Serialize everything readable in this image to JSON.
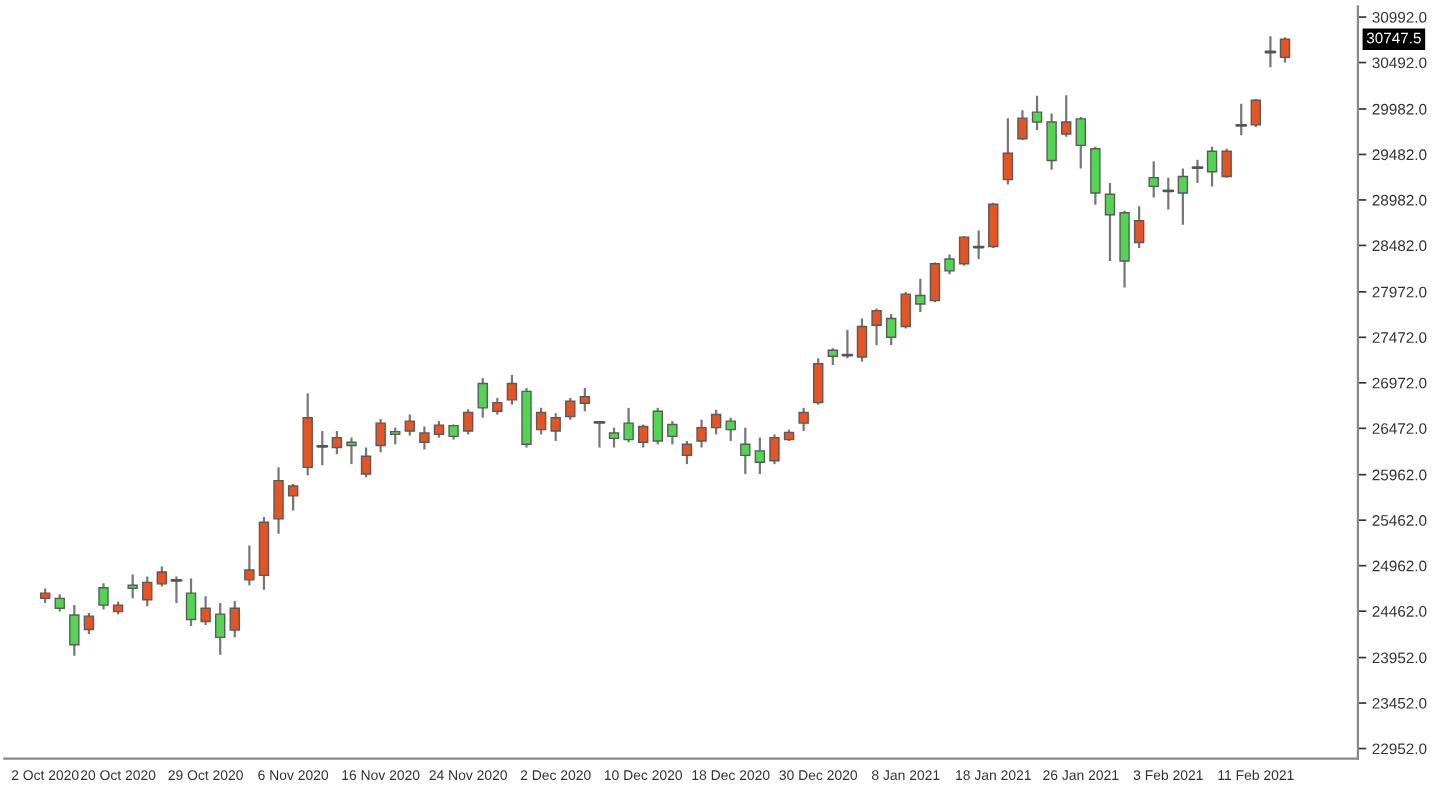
{
  "chart_data": {
    "type": "candlestick",
    "categories": [
      "2 Oct 2020",
      null,
      null,
      null,
      null,
      "20 Oct 2020",
      null,
      null,
      null,
      null,
      null,
      "29 Oct 2020",
      null,
      null,
      null,
      null,
      null,
      "6 Nov 2020",
      null,
      null,
      null,
      null,
      null,
      "16 Nov 2020",
      null,
      null,
      null,
      null,
      null,
      "24 Nov 2020",
      null,
      null,
      null,
      null,
      null,
      "2 Dec 2020",
      null,
      null,
      null,
      null,
      null,
      "10 Dec 2020",
      null,
      null,
      null,
      null,
      null,
      "18 Dec 2020",
      null,
      null,
      null,
      null,
      null,
      "30 Dec 2020",
      null,
      null,
      null,
      null,
      null,
      "8 Jan 2021",
      null,
      null,
      null,
      null,
      null,
      "18 Jan 2021",
      null,
      null,
      null,
      null,
      null,
      "26 Jan 2021",
      null,
      null,
      null,
      null,
      null,
      "3 Feb 2021",
      null,
      null,
      null,
      null,
      null,
      "11 Feb 2021",
      null,
      null
    ],
    "ohlc": [
      [
        24603,
        24712,
        24551,
        24660
      ],
      [
        24603,
        24647,
        24457,
        24494
      ],
      [
        24420,
        24529,
        23971,
        24093
      ],
      [
        24261,
        24442,
        24211,
        24407
      ],
      [
        24719,
        24769,
        24479,
        24529
      ],
      [
        24457,
        24566,
        24429,
        24529
      ],
      [
        24747,
        24865,
        24603,
        24712
      ],
      [
        24588,
        24843,
        24516,
        24778
      ],
      [
        24762,
        24952,
        24734,
        24893
      ],
      [
        24800,
        24843,
        24551,
        24800
      ],
      [
        24660,
        24821,
        24298,
        24370
      ],
      [
        24348,
        24625,
        24311,
        24494
      ],
      [
        24429,
        24551,
        23984,
        24174
      ],
      [
        24254,
        24573,
        24174,
        24494
      ],
      [
        24806,
        25183,
        24747,
        24915
      ],
      [
        24856,
        25497,
        24697,
        25439
      ],
      [
        25476,
        26043,
        25314,
        25897
      ],
      [
        25729,
        25860,
        25569,
        25838
      ],
      [
        26043,
        26856,
        25955,
        26588
      ],
      [
        26274,
        26442,
        26065,
        26274
      ],
      [
        26261,
        26442,
        26187,
        26370
      ],
      [
        26318,
        26370,
        26078,
        26283
      ],
      [
        25969,
        26261,
        25934,
        26165
      ],
      [
        26283,
        26573,
        26208,
        26529
      ],
      [
        26435,
        26479,
        26296,
        26405
      ],
      [
        26442,
        26623,
        26392,
        26551
      ],
      [
        26318,
        26492,
        26239,
        26420
      ],
      [
        26405,
        26551,
        26370,
        26507
      ],
      [
        26501,
        26514,
        26348,
        26383
      ],
      [
        26442,
        26682,
        26405,
        26645
      ],
      [
        26965,
        27024,
        26588,
        26697
      ],
      [
        26660,
        26806,
        26623,
        26754
      ],
      [
        26784,
        27059,
        26732,
        26965
      ],
      [
        26878,
        26915,
        26261,
        26296
      ],
      [
        26457,
        26697,
        26405,
        26645
      ],
      [
        26442,
        26638,
        26333,
        26588
      ],
      [
        26601,
        26806,
        26566,
        26769
      ],
      [
        26747,
        26915,
        26660,
        26819
      ],
      [
        26536,
        26551,
        26261,
        26536
      ],
      [
        26420,
        26479,
        26261,
        26361
      ],
      [
        26529,
        26697,
        26318,
        26348
      ],
      [
        26318,
        26514,
        26261,
        26492
      ],
      [
        26660,
        26697,
        26296,
        26333
      ],
      [
        26514,
        26551,
        26296,
        26383
      ],
      [
        26174,
        26333,
        26078,
        26296
      ],
      [
        26333,
        26566,
        26261,
        26479
      ],
      [
        26479,
        26675,
        26405,
        26623
      ],
      [
        26551,
        26588,
        26333,
        26457
      ],
      [
        26296,
        26479,
        25969,
        26174
      ],
      [
        26224,
        26370,
        25969,
        26099
      ],
      [
        26115,
        26405,
        26078,
        26370
      ],
      [
        26348,
        26457,
        26333,
        26427
      ],
      [
        26529,
        26697,
        26442,
        26645
      ],
      [
        26754,
        27242,
        26732,
        27183
      ],
      [
        27330,
        27351,
        27168,
        27264
      ],
      [
        27277,
        27554,
        27242,
        27277
      ],
      [
        27255,
        27679,
        27205,
        27591
      ],
      [
        27604,
        27788,
        27386,
        27766
      ],
      [
        27679,
        27729,
        27386,
        27473
      ],
      [
        27591,
        27969,
        27569,
        27947
      ],
      [
        27931,
        28115,
        27750,
        27838
      ],
      [
        27875,
        28296,
        27859,
        28280
      ],
      [
        28333,
        28383,
        28165,
        28202
      ],
      [
        28280,
        28586,
        28259,
        28573
      ],
      [
        28464,
        28645,
        28333,
        28464
      ],
      [
        28470,
        28950,
        28455,
        28935
      ],
      [
        29205,
        29881,
        29153,
        29495
      ],
      [
        29654,
        29969,
        29641,
        29881
      ],
      [
        29947,
        30128,
        29750,
        29838
      ],
      [
        29838,
        29931,
        29314,
        29415
      ],
      [
        29707,
        30134,
        29676,
        29838
      ],
      [
        29873,
        29894,
        29327,
        29582
      ],
      [
        29545,
        29567,
        28928,
        29059
      ],
      [
        29044,
        29168,
        28311,
        28819
      ],
      [
        28841,
        28863,
        28019,
        28311
      ],
      [
        28514,
        28913,
        28455,
        28754
      ],
      [
        29227,
        29408,
        29009,
        29131
      ],
      [
        29081,
        29227,
        28878,
        29081
      ],
      [
        29240,
        29327,
        28710,
        29059
      ],
      [
        29336,
        29423,
        29168,
        29336
      ],
      [
        29517,
        29567,
        29131,
        29292
      ],
      [
        29240,
        29545,
        29227,
        29517
      ],
      [
        29801,
        30040,
        29692,
        29801
      ],
      [
        29807,
        30091,
        29785,
        30078
      ],
      [
        30608,
        30782,
        30440,
        30608
      ],
      [
        30549,
        30770,
        30492,
        30747.5
      ]
    ],
    "colors": [
      "#e8531f",
      "#4fd84f",
      "#4fd84f",
      "#e8531f",
      "#4fd84f",
      "#e8531f",
      "#4fd84f",
      "#e8531f",
      "#e8531f",
      "#555555",
      "#4fd84f",
      "#e8531f",
      "#4fd84f",
      "#e8531f",
      "#e8531f",
      "#e8531f",
      "#e8531f",
      "#e8531f",
      "#e8531f",
      "#555555",
      "#e8531f",
      "#4fd84f",
      "#e8531f",
      "#e8531f",
      "#4fd84f",
      "#e8531f",
      "#e8531f",
      "#e8531f",
      "#4fd84f",
      "#e8531f",
      "#4fd84f",
      "#e8531f",
      "#e8531f",
      "#4fd84f",
      "#e8531f",
      "#e8531f",
      "#e8531f",
      "#e8531f",
      "#555555",
      "#4fd84f",
      "#4fd84f",
      "#e8531f",
      "#4fd84f",
      "#4fd84f",
      "#e8531f",
      "#e8531f",
      "#e8531f",
      "#4fd84f",
      "#4fd84f",
      "#4fd84f",
      "#e8531f",
      "#e8531f",
      "#e8531f",
      "#e8531f",
      "#4fd84f",
      "#555555",
      "#e8531f",
      "#e8531f",
      "#4fd84f",
      "#e8531f",
      "#4fd84f",
      "#e8531f",
      "#4fd84f",
      "#e8531f",
      "#555555",
      "#e8531f",
      "#e8531f",
      "#e8531f",
      "#4fd84f",
      "#4fd84f",
      "#e8531f",
      "#4fd84f",
      "#4fd84f",
      "#4fd84f",
      "#4fd84f",
      "#e8531f",
      "#4fd84f",
      "#555555",
      "#4fd84f",
      "#555555",
      "#4fd84f",
      "#e8531f",
      "#555555",
      "#e8531f",
      "#555555",
      "#e8531f"
    ],
    "ylim": [
      22840,
      31110
    ],
    "yticks": [
      {
        "value": 22952,
        "label": "22952.0"
      },
      {
        "value": 23452,
        "label": "23452.0"
      },
      {
        "value": 23952,
        "label": "23952.0"
      },
      {
        "value": 24462,
        "label": "24462.0"
      },
      {
        "value": 24962,
        "label": "24962.0"
      },
      {
        "value": 25462,
        "label": "25462.0"
      },
      {
        "value": 25962,
        "label": "25962.0"
      },
      {
        "value": 26472,
        "label": "26472.0"
      },
      {
        "value": 26972,
        "label": "26972.0"
      },
      {
        "value": 27472,
        "label": "27472.0"
      },
      {
        "value": 27972,
        "label": "27972.0"
      },
      {
        "value": 28482,
        "label": "28482.0"
      },
      {
        "value": 28982,
        "label": "28982.0"
      },
      {
        "value": 29482,
        "label": "29482.0"
      },
      {
        "value": 29982,
        "label": "29982.0"
      },
      {
        "value": 30492,
        "label": "30492.0"
      },
      {
        "value": 30992,
        "label": "30992.0"
      }
    ],
    "annotations": [
      "30747.5"
    ],
    "grid": false,
    "legend": false
  }
}
